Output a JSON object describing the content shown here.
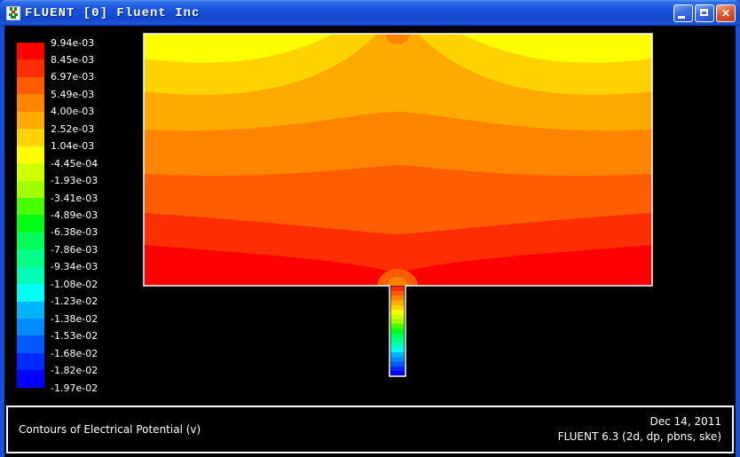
{
  "window": {
    "title": "FLUENT [0] Fluent Inc",
    "controls": {
      "minimize": "minimize",
      "maximize": "maximize",
      "close": "close"
    }
  },
  "colorbar": {
    "labels": [
      "9.94e-03",
      "8.45e-03",
      "6.97e-03",
      "5.49e-03",
      "4.00e-03",
      "2.52e-03",
      "1.04e-03",
      "-4.45e-04",
      "-1.93e-03",
      "-3.41e-03",
      "-4.89e-03",
      "-6.38e-03",
      "-7.86e-03",
      "-9.34e-03",
      "-1.08e-02",
      "-1.23e-02",
      "-1.38e-02",
      "-1.53e-02",
      "-1.68e-02",
      "-1.82e-02",
      "-1.97e-02"
    ],
    "colors": [
      "#ff0000",
      "#ff2e00",
      "#ff5d00",
      "#ff8400",
      "#ffaa00",
      "#ffd300",
      "#ffff00",
      "#d1ff00",
      "#a2ff00",
      "#48ff00",
      "#00ff17",
      "#00ff5a",
      "#00ff87",
      "#00ffb4",
      "#00fff2",
      "#00b4ff",
      "#008cff",
      "#0058ff",
      "#0029ff",
      "#0000ff"
    ]
  },
  "caption": {
    "left": "Contours of Electrical Potential (v)",
    "date": "Dec 14, 2011",
    "solver": "FLUENT 6.3 (2d, dp, pbns, ske)"
  },
  "chart_data": {
    "type": "heatmap",
    "title": "Contours of Electrical Potential (v)",
    "quantity": "Electrical Potential (v)",
    "value_max": 0.00994,
    "value_min": -0.0197,
    "contour_levels": [
      0.00994,
      0.00845,
      0.00697,
      0.00549,
      0.004,
      0.00252,
      0.00104,
      -0.000445,
      -0.00193,
      -0.00341,
      -0.00489,
      -0.00638,
      -0.00786,
      -0.00934,
      -0.0108,
      -0.0123,
      -0.0138,
      -0.0153,
      -0.0168,
      -0.0182,
      -0.0197
    ],
    "legend_position": "left",
    "colormap": "rainbow (red = max, blue = min), 20 discrete bands",
    "geometry": "wide rectangular chamber with a narrow vertical outlet channel at bottom center; potential increases from top (yellow, ~1e-3) to bottom (red, ~9.9e-3) of the chamber, with a small high-potential spot at top center and the full drop to -1.97e-2 (blue) occurring along the outlet channel"
  }
}
